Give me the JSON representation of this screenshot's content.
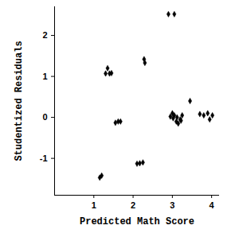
{
  "chart_data": {
    "type": "scatter",
    "xlabel": "Predicted Math Score",
    "ylabel": "Studentized Residuals",
    "x": [
      1.15,
      1.2,
      1.3,
      1.35,
      1.4,
      1.45,
      1.55,
      1.62,
      1.68,
      2.1,
      2.17,
      2.25,
      2.28,
      2.3,
      2.9,
      3.05,
      2.95,
      3.0,
      3.02,
      3.05,
      3.1,
      3.12,
      3.15,
      3.2,
      3.25,
      3.22,
      3.45,
      3.7,
      3.8,
      3.9,
      3.95,
      4.02
    ],
    "values": [
      -1.47,
      -1.42,
      1.07,
      1.2,
      1.07,
      1.08,
      -0.13,
      -0.1,
      -0.1,
      -1.13,
      -1.12,
      -1.1,
      1.42,
      1.33,
      2.52,
      2.52,
      0.02,
      0.1,
      -0.02,
      0.05,
      -0.1,
      0.0,
      -0.15,
      -0.05,
      0.05,
      -0.08,
      0.4,
      0.08,
      0.05,
      0.1,
      -0.05,
      0.05
    ],
    "color": "#000000",
    "marker": "diamond",
    "xlim": [
      0,
      4.2
    ],
    "xticks": [
      1,
      2,
      3,
      4
    ],
    "ylim": [
      -1.9,
      2.7
    ],
    "yticks": [
      -1,
      0,
      1,
      2
    ],
    "grid": false
  }
}
